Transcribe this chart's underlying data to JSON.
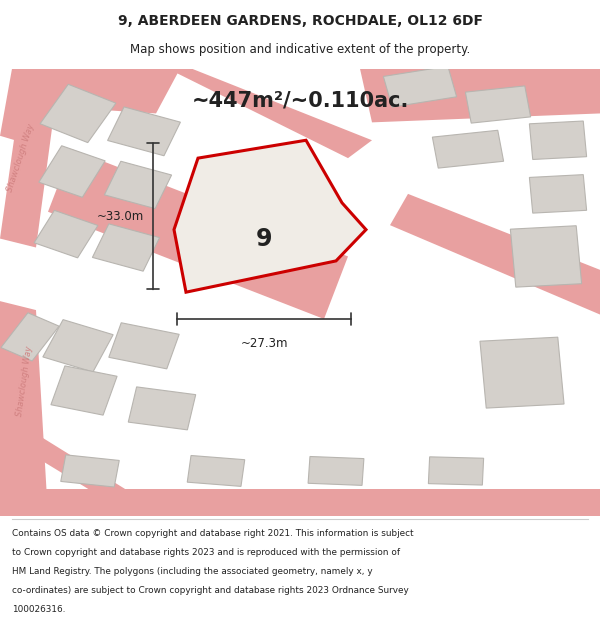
{
  "title_line1": "9, ABERDEEN GARDENS, ROCHDALE, OL12 6DF",
  "title_line2": "Map shows position and indicative extent of the property.",
  "area_text": "~447m²/~0.110ac.",
  "property_label": "9",
  "dim_width": "~27.3m",
  "dim_height": "~33.0m",
  "footer_lines": [
    "Contains OS data © Crown copyright and database right 2021. This information is subject",
    "to Crown copyright and database rights 2023 and is reproduced with the permission of",
    "HM Land Registry. The polygons (including the associated geometry, namely x, y",
    "co-ordinates) are subject to Crown copyright and database rights 2023 Ordnance Survey",
    "100026316."
  ],
  "map_bg": "#ede9e3",
  "property_fill": "#f0ece6",
  "property_edge": "#cc0000",
  "road_color": "#e8a0a0",
  "building_fill": "#d4d0cb",
  "building_edge": "#b8b5b0",
  "footer_bg": "#ffffff",
  "text_color": "#222222",
  "dim_color": "#333333",
  "street_label_color": "#d08080"
}
